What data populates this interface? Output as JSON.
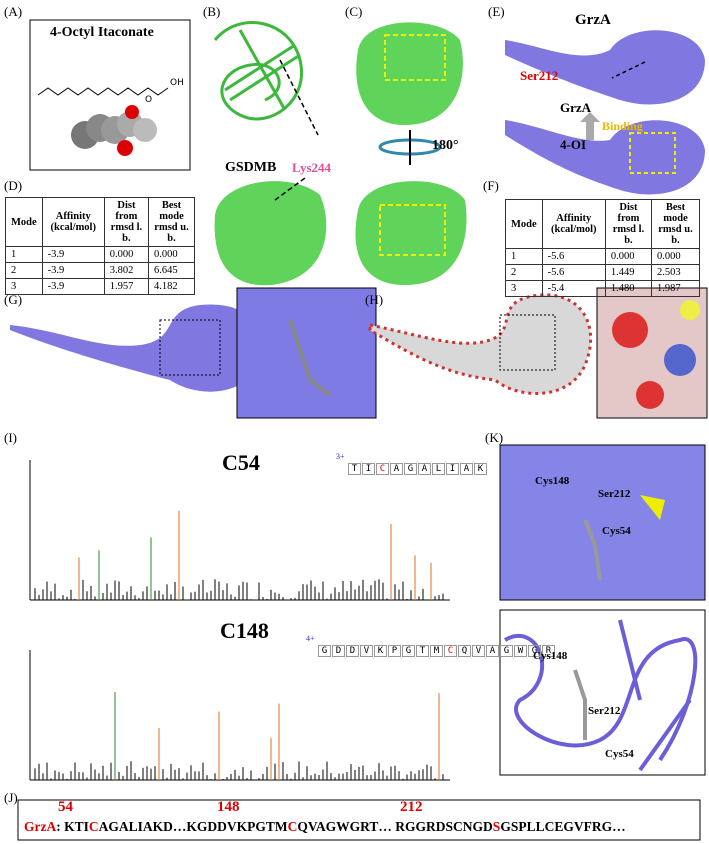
{
  "panels": {
    "a": "(A)",
    "b": "(B)",
    "c": "(C)",
    "d": "(D)",
    "e": "(E)",
    "f": "(F)",
    "g": "(G)",
    "h": "(H)",
    "i": "(I)",
    "j": "(J)",
    "k": "(K)"
  },
  "a": {
    "title": "4-Octyl Itaconate",
    "atoms": [
      "O",
      "OH"
    ]
  },
  "b": {
    "protein": "GSDMB",
    "residue": "Lys244"
  },
  "c": {
    "rotation": "180°"
  },
  "e": {
    "protein": "GrzA",
    "residue": "Ser212",
    "protein2": "GrzA",
    "relation": "Binding",
    "ligand": "4-OI"
  },
  "tables": {
    "d": {
      "rows": [
        [
          "Mode",
          "Affinity (kcal/mol)",
          "Dist from rmsd l. b.",
          "Best mode rmsd u. b."
        ],
        [
          "1",
          "-3.9",
          "0.000",
          "0.000"
        ],
        [
          "2",
          "-3.9",
          "3.802",
          "6.645"
        ],
        [
          "3",
          "-3.9",
          "1.957",
          "4.182"
        ]
      ]
    },
    "f": {
      "rows": [
        [
          "Mode",
          "Affinity (kcal/mol)",
          "Dist from rmsd l. b.",
          "Best mode rmsd u. b."
        ],
        [
          "1",
          "-5.6",
          "0.000",
          "0.000"
        ],
        [
          "2",
          "-5.6",
          "1.449",
          "2.503"
        ],
        [
          "3",
          "-5.4",
          "1.480",
          "1.987"
        ]
      ]
    }
  },
  "i": {
    "c54": {
      "title": "C54",
      "charge": "3+",
      "peptide": [
        "T",
        "I",
        "C",
        "A",
        "G",
        "A",
        "L",
        "I",
        "A",
        "K"
      ]
    },
    "c148": {
      "title": "C148",
      "charge": "4+",
      "peptide": [
        "G",
        "D",
        "D",
        "V",
        "K",
        "P",
        "G",
        "T",
        "M",
        "C",
        "Q",
        "V",
        "A",
        "G",
        "W",
        "G",
        "R"
      ]
    }
  },
  "k": {
    "top": [
      "Cys148",
      "Ser212",
      "Cys54"
    ],
    "bottom": [
      "Cys148",
      "Ser212",
      "Cys54"
    ]
  },
  "j": {
    "positions": [
      54,
      148,
      212
    ],
    "protein": "GrzA",
    "sequence": [
      ": KTI",
      "C",
      "AGALIAKD…KGDDVKPGTM",
      "C",
      "QVAGWGRT…  RGGRDSCNGD",
      "S",
      "GSPLLCEGVFRG…"
    ]
  }
}
